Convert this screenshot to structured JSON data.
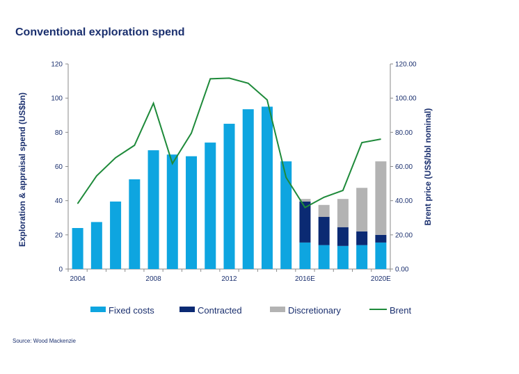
{
  "title": "Conventional exploration spend",
  "source": "Source: Wood Mackenzie",
  "colors": {
    "fixed": "#0ea5e0",
    "contracted": "#0b2a73",
    "discretionary": "#b3b3b3",
    "brent": "#1e8a3a",
    "text": "#1a2f6e"
  },
  "chart_data": {
    "type": "bar",
    "stacked": true,
    "title": "Conventional exploration spend",
    "ylabel": "Exploration & appraisal spend (US$bn)",
    "y2label": "Brent price (US$/bbl nominal)",
    "ylim": [
      0,
      120
    ],
    "y2lim": [
      0,
      120
    ],
    "yticks": [
      "0",
      "20",
      "40",
      "60",
      "80",
      "100",
      "120"
    ],
    "y2ticks": [
      "0.00",
      "20.00",
      "40.00",
      "60.00",
      "80.00",
      "100.00",
      "120.00"
    ],
    "categories": [
      "2004",
      "2005",
      "2006",
      "2007",
      "2008",
      "2009",
      "2010",
      "2011",
      "2012",
      "2013",
      "2014",
      "2015",
      "2016E",
      "2017E",
      "2018E",
      "2019E",
      "2020E"
    ],
    "xtick_labels": [
      {
        "index": 0,
        "label": "2004"
      },
      {
        "index": 4,
        "label": "2008"
      },
      {
        "index": 8,
        "label": "2012"
      },
      {
        "index": 12,
        "label": "2016E"
      },
      {
        "index": 16,
        "label": "2020E"
      }
    ],
    "series": [
      {
        "name": "Fixed costs",
        "kind": "bar",
        "values": [
          24,
          27.5,
          39.5,
          52.5,
          69.5,
          67,
          66,
          74,
          85,
          93.5,
          95,
          63,
          15.5,
          14,
          13.5,
          14,
          15.5
        ]
      },
      {
        "name": "Contracted",
        "kind": "bar",
        "values": [
          0,
          0,
          0,
          0,
          0,
          0,
          0,
          0,
          0,
          0,
          0,
          0,
          24,
          16.5,
          11,
          8,
          4.5
        ]
      },
      {
        "name": "Discretionary",
        "kind": "bar",
        "values": [
          0,
          0,
          0,
          0,
          0,
          0,
          0,
          0,
          0,
          0,
          0,
          0,
          1.5,
          7,
          16.5,
          25.5,
          43
        ]
      },
      {
        "name": "Brent",
        "kind": "line",
        "axis": "right",
        "values": [
          38.3,
          54.5,
          65.1,
          72.4,
          97.0,
          61.7,
          79.5,
          111.3,
          111.7,
          108.7,
          99.0,
          53.6,
          36.0,
          42.0,
          46.0,
          74.0,
          76.0
        ]
      }
    ],
    "legend": {
      "position": "bottom",
      "items": [
        "Fixed costs",
        "Contracted",
        "Discretionary",
        "Brent"
      ]
    }
  }
}
